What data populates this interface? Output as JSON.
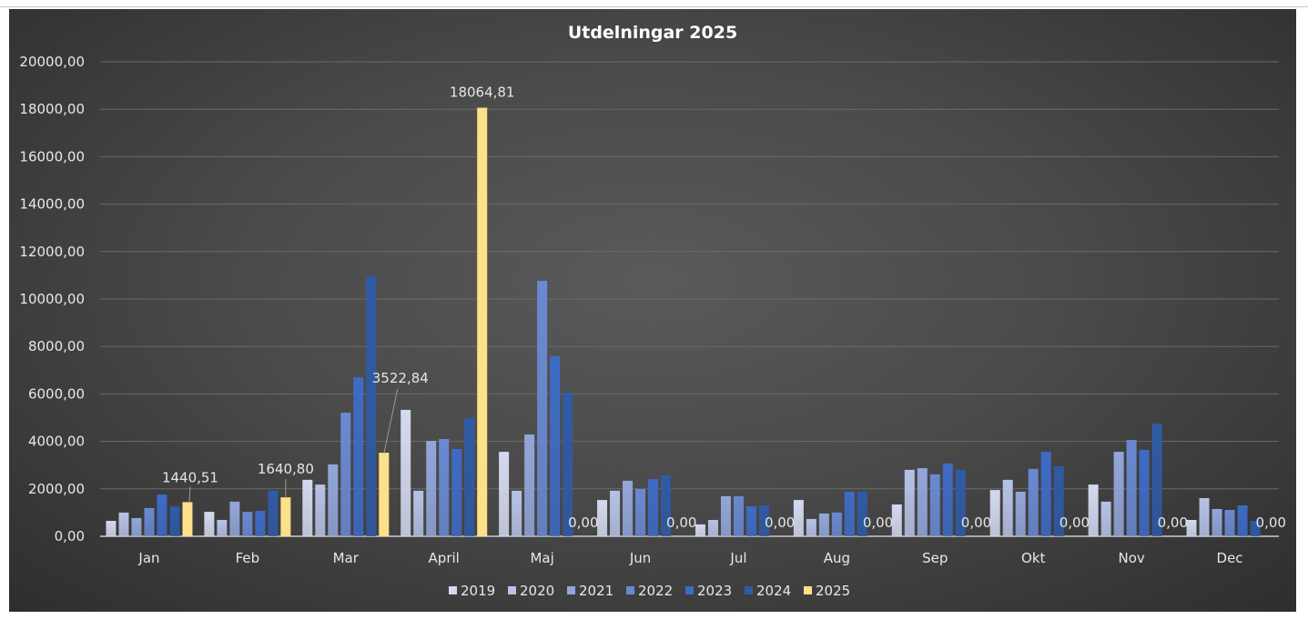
{
  "chart_data": {
    "type": "bar",
    "title": "Utdelningar 2025",
    "xlabel": "",
    "ylabel": "",
    "ylim": [
      0,
      20000
    ],
    "yticks": [
      "0,00",
      "2000,00",
      "4000,00",
      "6000,00",
      "8000,00",
      "10000,00",
      "12000,00",
      "14000,00",
      "16000,00",
      "18000,00",
      "20000,00"
    ],
    "ytick_values": [
      0,
      2000,
      4000,
      6000,
      8000,
      10000,
      12000,
      14000,
      16000,
      18000,
      20000
    ],
    "grid": true,
    "legend_position": "bottom",
    "categories": [
      "Jan",
      "Feb",
      "Mar",
      "April",
      "Maj",
      "Jun",
      "Jul",
      "Aug",
      "Sep",
      "Okt",
      "Nov",
      "Dec"
    ],
    "series": [
      {
        "name": "2019",
        "color": "#d3d9ef",
        "values": [
          650,
          1030,
          2380,
          5330,
          3560,
          1530,
          500,
          1530,
          1340,
          1950,
          2180,
          690
        ]
      },
      {
        "name": "2020",
        "color": "#b6c2e6",
        "values": [
          1000,
          690,
          2180,
          1920,
          1920,
          1920,
          690,
          730,
          2800,
          2380,
          1460,
          1610
        ]
      },
      {
        "name": "2021",
        "color": "#92a6da",
        "values": [
          770,
          1460,
          3030,
          4020,
          4290,
          2340,
          1690,
          960,
          2870,
          1880,
          3560,
          1150
        ]
      },
      {
        "name": "2022",
        "color": "#6a89d2",
        "values": [
          1190,
          1030,
          5210,
          4100,
          10770,
          1990,
          1690,
          1000,
          2610,
          2840,
          4060,
          1110
        ]
      },
      {
        "name": "2023",
        "color": "#3e6bc6",
        "values": [
          1760,
          1070,
          6700,
          3680,
          7590,
          2410,
          1260,
          1880,
          3070,
          3560,
          3640,
          1300
        ]
      },
      {
        "name": "2024",
        "color": "#2f5aa6",
        "values": [
          1260,
          1920,
          10960,
          4980,
          6050,
          2570,
          1300,
          1880,
          2800,
          2950,
          4750,
          650
        ]
      },
      {
        "name": "2025",
        "color": "#ffe08a",
        "values": [
          1440.51,
          1640.8,
          3522.84,
          18064.81,
          0,
          0,
          0,
          0,
          0,
          0,
          0,
          0
        ]
      }
    ],
    "data_labels_2025": [
      "1440,51",
      "1640,80",
      "3522,84",
      "18064,81",
      "0,00",
      "0,00",
      "0,00",
      "0,00",
      "0,00",
      "0,00",
      "0,00",
      "0,00"
    ]
  }
}
